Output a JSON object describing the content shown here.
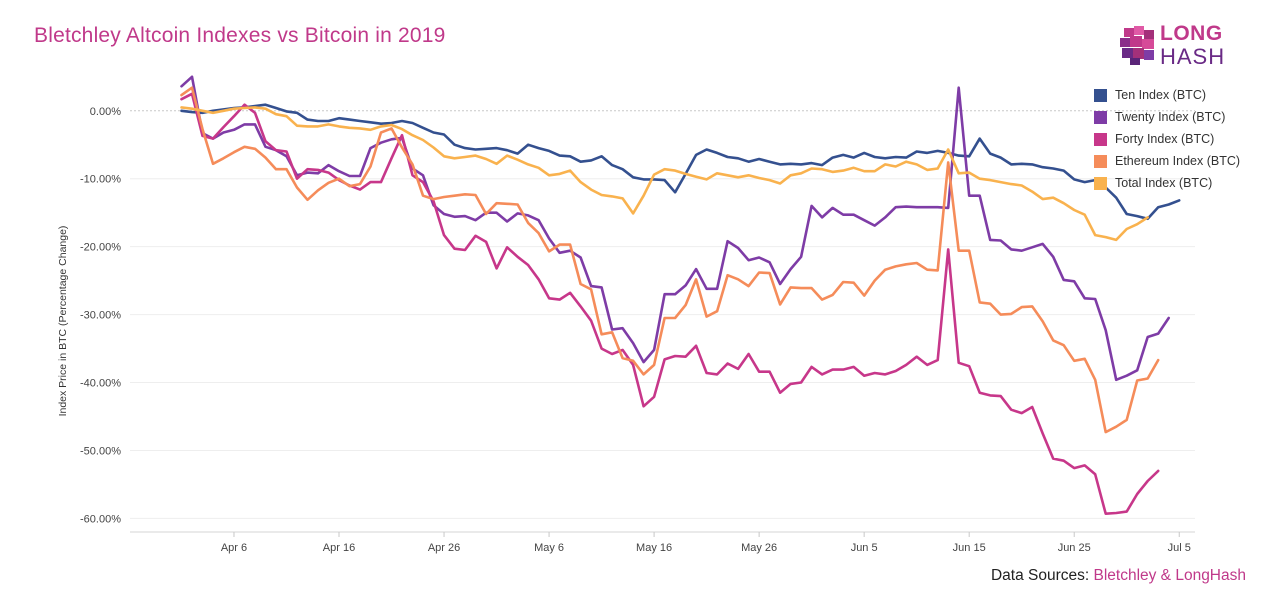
{
  "title": "Bletchley Altcoin Indexes vs Bitcoin in 2019",
  "logo": {
    "line1": "LONG",
    "line2": "HASH",
    "icon": "cube-logo-icon"
  },
  "source": {
    "prefix": "Data Sources: ",
    "names": "Bletchley & LongHash"
  },
  "chart_data": {
    "type": "line",
    "ylabel": "Index Price in BTC   (Percentage Change)",
    "xlabel": "",
    "y_ticks": [
      0,
      -10,
      -20,
      -30,
      -40,
      -50,
      -60
    ],
    "y_tick_labels": [
      "0.00%",
      "-10.00%",
      "-20.00%",
      "-30.00%",
      "-40.00%",
      "-50.00%",
      "-60.00%"
    ],
    "ylim": [
      -62,
      6
    ],
    "x_ticks": [
      {
        "day": 6,
        "label": "Apr 6"
      },
      {
        "day": 16,
        "label": "Apr 16"
      },
      {
        "day": 26,
        "label": "Apr 26"
      },
      {
        "day": 36,
        "label": "May 6"
      },
      {
        "day": 46,
        "label": "May 16"
      },
      {
        "day": 56,
        "label": "May 26"
      },
      {
        "day": 66,
        "label": "Jun 5"
      },
      {
        "day": 76,
        "label": "Jun 15"
      },
      {
        "day": 86,
        "label": "Jun 25"
      },
      {
        "day": 96,
        "label": "Jul 5"
      }
    ],
    "xlim": [
      -3.9,
      97.5
    ],
    "legend_position": "top-right",
    "grid": true,
    "x_start": 1,
    "series": [
      {
        "name": "Ten Index (BTC)",
        "color": "#34508f",
        "values": [
          0,
          -0.2,
          -0.3,
          0,
          0.2,
          0.4,
          0.5,
          0.7,
          0.9,
          0.4,
          -0.1,
          -0.3,
          -1.3,
          -1.5,
          -1.5,
          -1.1,
          -1.3,
          -1.5,
          -1.7,
          -1.9,
          -1.8,
          -1.5,
          -1.8,
          -2.5,
          -3.2,
          -3.5,
          -5,
          -5.5,
          -5.7,
          -5.6,
          -5.5,
          -5.8,
          -6.3,
          -5,
          -5.5,
          -5.9,
          -6.6,
          -6.7,
          -7.5,
          -7.3,
          -6.7,
          -8,
          -8.6,
          -9.8,
          -10.1,
          -10.1,
          -10.2,
          -12,
          -9.3,
          -6.5,
          -5.7,
          -6.2,
          -6.8,
          -7,
          -7.5,
          -7.1,
          -7.5,
          -7.9,
          -7.8,
          -7.9,
          -7.7,
          -8,
          -6.9,
          -6.5,
          -6.9,
          -6.2,
          -6.8,
          -7,
          -6.8,
          -6.9,
          -6,
          -6.2,
          -5.9,
          -6.2,
          -6.6,
          -6.7,
          -4.1,
          -6.3,
          -6.9,
          -7.9,
          -7.8,
          -7.9,
          -8.3,
          -8.5,
          -8.8,
          -10.1,
          -10.5,
          -10.2,
          -11.3,
          -12.8,
          -15.2,
          -15.5,
          -15.9,
          -14.2,
          -13.8,
          -13.2
        ]
      },
      {
        "name": "Twenty Index (BTC)",
        "color": "#7e3ca6",
        "values": [
          3.6,
          5,
          -3.3,
          -4.1,
          -3.2,
          -2.8,
          -2,
          -2,
          -5.3,
          -5.8,
          -6.7,
          -9.5,
          -9.1,
          -9.2,
          -8,
          -8.9,
          -9.6,
          -9.6,
          -5.5,
          -4.7,
          -4.2,
          -4,
          -8.5,
          -9.5,
          -13.9,
          -15.2,
          -15.6,
          -15.5,
          -16.1,
          -15,
          -15,
          -16.3,
          -15.1,
          -15.4,
          -16.1,
          -18.8,
          -20.9,
          -20.6,
          -21.6,
          -25.8,
          -26,
          -32.2,
          -32,
          -34.2,
          -37,
          -35.2,
          -27,
          -27,
          -25.7,
          -23.3,
          -26.2,
          -26.2,
          -19.2,
          -20.2,
          -22,
          -21.6,
          -22.3,
          -25.5,
          -23.3,
          -21.5,
          -14,
          -15.7,
          -14.3,
          -15.3,
          -15.3,
          -16.1,
          -16.9,
          -15.7,
          -14.2,
          -14.1,
          -14.2,
          -14.2,
          -14.2,
          -14.3,
          3.4,
          -12.5,
          -12.5,
          -19,
          -19.1,
          -20.4,
          -20.6,
          -20.1,
          -19.6,
          -21.5,
          -24.9,
          -25.1,
          -27.6,
          -27.7,
          -32.3,
          -39.6,
          -39,
          -38.2,
          -33.3,
          -32.8,
          -30.5
        ]
      },
      {
        "name": "Forty Index (BTC)",
        "color": "#c7378a",
        "values": [
          1.7,
          2.5,
          -3.7,
          -4.1,
          -2.4,
          -0.8,
          0.9,
          -0.3,
          -4.5,
          -5.8,
          -6,
          -10,
          -8.6,
          -8.7,
          -9.1,
          -10.2,
          -11,
          -11.6,
          -10.5,
          -10.5,
          -7,
          -3.6,
          -9.5,
          -10.5,
          -13.3,
          -18.3,
          -20.3,
          -20.5,
          -18.4,
          -19.3,
          -23.2,
          -20.1,
          -21.5,
          -22.7,
          -24.8,
          -27.6,
          -27.8,
          -26.8,
          -28.8,
          -30.9,
          -35,
          -35.8,
          -35.2,
          -37.4,
          -43.5,
          -42.1,
          -36.6,
          -36.1,
          -36.2,
          -34.6,
          -38.6,
          -38.8,
          -37.2,
          -38,
          -35.8,
          -38.4,
          -38.4,
          -41.5,
          -40.2,
          -40,
          -37.7,
          -38.8,
          -38.1,
          -38.1,
          -37.7,
          -39,
          -38.6,
          -38.8,
          -38.3,
          -37.4,
          -36.2,
          -37.4,
          -36.7,
          -20.4,
          -37.1,
          -37.6,
          -41.5,
          -41.9,
          -42,
          -44,
          -44.5,
          -43.6,
          -47.5,
          -51.2,
          -51.5,
          -52.6,
          -52.2,
          -53.5,
          -59.3,
          -59.2,
          -59,
          -56.4,
          -54.5,
          -53
        ]
      },
      {
        "name": "Ethereum Index (BTC)",
        "color": "#f58c5a",
        "values": [
          2.3,
          3.4,
          -2.7,
          -7.8,
          -7,
          -6.1,
          -5.3,
          -5.6,
          -6.9,
          -8.6,
          -8.6,
          -11.3,
          -13.1,
          -11.7,
          -10.6,
          -10,
          -11.1,
          -10.8,
          -8.2,
          -3.2,
          -2.6,
          -5.4,
          -7.9,
          -12.5,
          -13,
          -12.7,
          -12.5,
          -12.3,
          -12.4,
          -15.2,
          -13.6,
          -13.7,
          -13.8,
          -16.5,
          -18,
          -20.7,
          -19.7,
          -19.7,
          -25.5,
          -26.3,
          -32.9,
          -32.6,
          -36.4,
          -36.8,
          -38.8,
          -37.4,
          -30.5,
          -30.5,
          -28.6,
          -24.8,
          -30.3,
          -29.5,
          -24.2,
          -24.8,
          -25.8,
          -23.8,
          -23.9,
          -28.5,
          -26,
          -26.1,
          -26.1,
          -27.8,
          -27.1,
          -25.2,
          -25.3,
          -27.2,
          -25,
          -23.4,
          -22.9,
          -22.6,
          -22.4,
          -23.4,
          -23.5,
          -7.6,
          -20.6,
          -20.6,
          -28.2,
          -28.4,
          -30,
          -29.9,
          -28.9,
          -28.8,
          -31,
          -33.8,
          -34.5,
          -36.8,
          -36.5,
          -39.6,
          -47.3,
          -46.5,
          -45.5,
          -39.7,
          -39.4,
          -36.7
        ]
      },
      {
        "name": "Total Index (BTC)",
        "color": "#f9b24e",
        "values": [
          0.5,
          0.3,
          0,
          -0.3,
          0,
          0.3,
          0.4,
          0.5,
          0.3,
          -0.5,
          -0.8,
          -2.2,
          -2.3,
          -2.3,
          -2,
          -2.3,
          -2.5,
          -2.6,
          -2.8,
          -2.3,
          -2.1,
          -2.7,
          -3.6,
          -4.3,
          -5.4,
          -6.7,
          -7,
          -6.8,
          -6.6,
          -7.1,
          -7.8,
          -6.6,
          -7.2,
          -7.9,
          -8.4,
          -9.5,
          -9.3,
          -8.8,
          -10.5,
          -11.6,
          -12.4,
          -12.6,
          -12.9,
          -15.1,
          -12.5,
          -9.4,
          -8.6,
          -8.8,
          -9.3,
          -9.7,
          -10.1,
          -9.2,
          -9.5,
          -9.8,
          -9.5,
          -9.9,
          -10.2,
          -10.7,
          -9.5,
          -9.2,
          -8.5,
          -8.6,
          -9,
          -8.8,
          -8.4,
          -8.9,
          -8.9,
          -7.9,
          -8.2,
          -7.5,
          -7.9,
          -8.7,
          -8.5,
          -5.7,
          -9.2,
          -9.1,
          -10,
          -10.2,
          -10.5,
          -10.8,
          -11,
          -11.9,
          -13,
          -12.8,
          -13.6,
          -14.6,
          -15.3,
          -18.3,
          -18.6,
          -19,
          -17.4,
          -16.7,
          -15.7
        ]
      }
    ]
  }
}
